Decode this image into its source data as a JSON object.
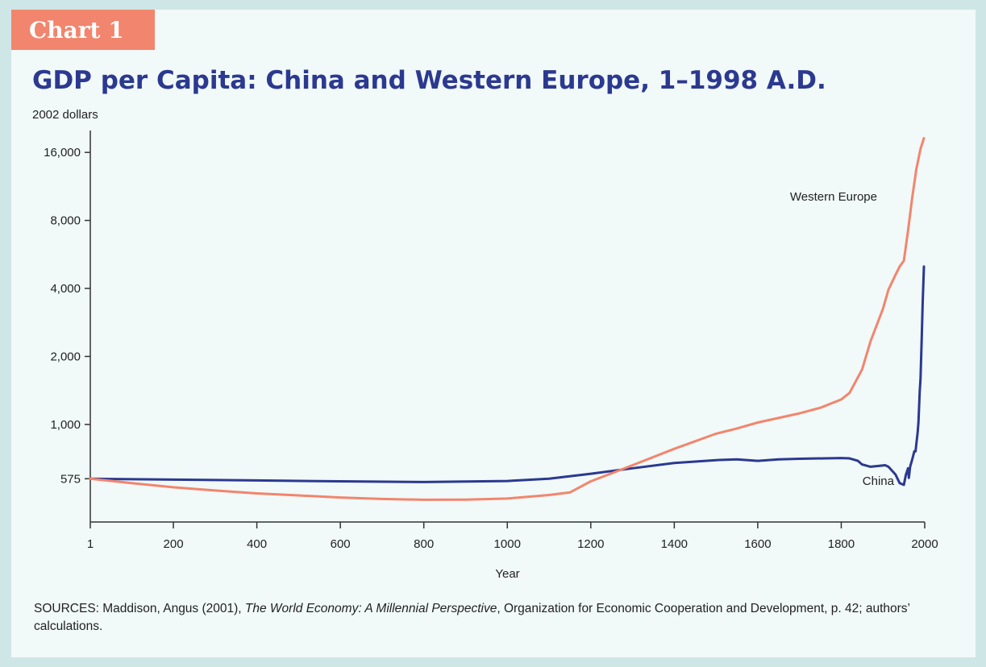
{
  "tag": "Chart 1",
  "sources": {
    "prefix": "SOURCES: Maddison, Angus (2001), ",
    "book": "The World Economy: A Millennial Perspective",
    "suffix": ", Organization for Economic Cooperation and Development, p. 42; authors’ calculations."
  },
  "chart_data": {
    "type": "line",
    "title": "GDP per Capita: China and Western Europe, 1–1998 A.D.",
    "ylabel": "2002 dollars",
    "xlabel": "Year",
    "yscale": "log",
    "xlim": [
      1,
      2000
    ],
    "ylim": [
      370,
      20000
    ],
    "xticks": [
      1,
      200,
      400,
      600,
      800,
      1000,
      1200,
      1400,
      1600,
      1800,
      2000
    ],
    "xtick_labels": [
      "1",
      "200",
      "400",
      "600",
      "800",
      "1000",
      "1200",
      "1400",
      "1600",
      "1800",
      "2000"
    ],
    "yticks": [
      575,
      1000,
      2000,
      4000,
      8000,
      16000
    ],
    "ytick_labels": [
      "575",
      "1,000",
      "2,000",
      "4,000",
      "8,000",
      "16,000"
    ],
    "grid": false,
    "series": [
      {
        "name": "Western Europe",
        "color": "#f2856d",
        "x": [
          1,
          100,
          200,
          300,
          400,
          500,
          600,
          700,
          800,
          900,
          1000,
          1100,
          1150,
          1200,
          1300,
          1400,
          1500,
          1550,
          1600,
          1700,
          1750,
          1800,
          1820,
          1850,
          1870,
          1900,
          1913,
          1929,
          1940,
          1950,
          1960,
          1970,
          1980,
          1990,
          1998
        ],
        "y": [
          575,
          550,
          527,
          510,
          495,
          485,
          475,
          468,
          464,
          465,
          470,
          487,
          500,
          560,
          660,
          780,
          910,
          960,
          1020,
          1120,
          1185,
          1290,
          1380,
          1750,
          2330,
          3250,
          3950,
          4550,
          5000,
          5300,
          7200,
          10100,
          13500,
          16600,
          18500
        ]
      },
      {
        "name": "China",
        "color": "#2b3990",
        "x": [
          1,
          200,
          400,
          600,
          800,
          1000,
          1100,
          1200,
          1300,
          1400,
          1500,
          1550,
          1600,
          1650,
          1700,
          1800,
          1820,
          1840,
          1850,
          1870,
          1890,
          1905,
          1913,
          1930,
          1940,
          1950,
          1955,
          1960,
          1962,
          1965,
          1970,
          1975,
          1978,
          1980,
          1983,
          1985,
          1988,
          1990,
          1993,
          1995,
          1998
        ],
        "y": [
          575,
          570,
          565,
          560,
          556,
          562,
          575,
          605,
          640,
          675,
          695,
          700,
          690,
          700,
          705,
          710,
          708,
          690,
          665,
          650,
          655,
          660,
          650,
          600,
          550,
          540,
          600,
          640,
          580,
          650,
          700,
          760,
          760,
          820,
          920,
          1020,
          1400,
          1600,
          2500,
          3400,
          5000
        ]
      }
    ]
  }
}
